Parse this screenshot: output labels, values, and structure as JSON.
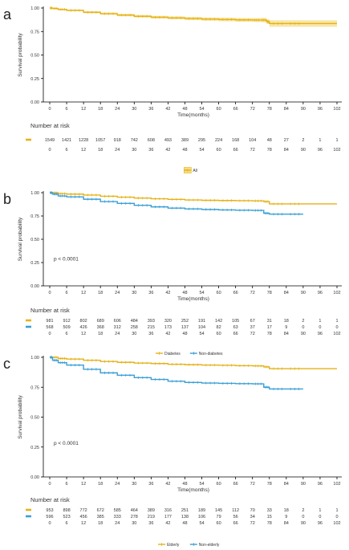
{
  "colors": {
    "yellow": "#e6b219",
    "blue": "#3a9fd6",
    "ci_fill": "#f4dd8a",
    "axis": "#000000",
    "text": "#333333"
  },
  "common": {
    "x_ticks": [
      0,
      6,
      12,
      18,
      24,
      30,
      36,
      42,
      48,
      54,
      60,
      66,
      72,
      78,
      84,
      90,
      96,
      102
    ],
    "y_ticks": [
      "0.00",
      "0.25",
      "0.50",
      "0.75",
      "1.00"
    ],
    "ylabel": "Survival probability",
    "xlabel": "Time(months)",
    "risk_title": "Number at risk"
  },
  "chart_data": [
    {
      "type": "line",
      "panel_letter": "a",
      "xlim": [
        0,
        102
      ],
      "ylim": [
        0,
        1
      ],
      "pvalue": "",
      "series": [
        {
          "name": "All",
          "color": "yellow",
          "ci": true,
          "x": [
            0,
            1,
            3,
            6,
            12,
            18,
            24,
            30,
            36,
            42,
            48,
            54,
            60,
            66,
            72,
            75,
            77,
            78,
            84,
            90,
            102
          ],
          "y": [
            1.0,
            0.995,
            0.985,
            0.975,
            0.955,
            0.94,
            0.925,
            0.912,
            0.902,
            0.895,
            0.888,
            0.882,
            0.878,
            0.874,
            0.872,
            0.872,
            0.855,
            0.835,
            0.835,
            0.835,
            0.835
          ],
          "ci_upper": [
            1.0,
            1.0,
            0.992,
            0.984,
            0.966,
            0.952,
            0.938,
            0.926,
            0.917,
            0.911,
            0.905,
            0.9,
            0.897,
            0.894,
            0.893,
            0.895,
            0.88,
            0.87,
            0.87,
            0.87,
            0.87
          ],
          "ci_lower": [
            1.0,
            0.99,
            0.978,
            0.966,
            0.944,
            0.928,
            0.912,
            0.898,
            0.887,
            0.879,
            0.871,
            0.864,
            0.859,
            0.854,
            0.851,
            0.849,
            0.83,
            0.8,
            0.8,
            0.8,
            0.8
          ]
        }
      ],
      "risk_table": [
        {
          "color": "yellow",
          "values": [
            "1549",
            "1421",
            "1228",
            "1057",
            "918",
            "742",
            "608",
            "493",
            "389",
            "295",
            "224",
            "168",
            "104",
            "48",
            "27",
            "2",
            "1",
            "1"
          ]
        }
      ],
      "legend": [
        "All"
      ]
    },
    {
      "type": "line",
      "panel_letter": "b",
      "xlim": [
        0,
        102
      ],
      "ylim": [
        0,
        1
      ],
      "pvalue": "p < 0.0001",
      "series": [
        {
          "name": "Diabetes",
          "color": "yellow",
          "ci": false,
          "x": [
            0,
            3,
            6,
            12,
            18,
            24,
            30,
            36,
            42,
            48,
            54,
            60,
            66,
            72,
            76,
            78,
            84,
            90,
            102
          ],
          "y": [
            1.0,
            0.99,
            0.985,
            0.975,
            0.962,
            0.952,
            0.942,
            0.935,
            0.928,
            0.922,
            0.918,
            0.916,
            0.914,
            0.912,
            0.905,
            0.88,
            0.88,
            0.88,
            0.88
          ]
        },
        {
          "name": "Non-diabetes",
          "color": "blue",
          "ci": false,
          "x": [
            0,
            1,
            3,
            6,
            12,
            18,
            24,
            30,
            36,
            42,
            48,
            54,
            60,
            66,
            72,
            76,
            78,
            84,
            90
          ],
          "y": [
            1.0,
            0.985,
            0.965,
            0.955,
            0.93,
            0.905,
            0.885,
            0.865,
            0.848,
            0.835,
            0.826,
            0.82,
            0.815,
            0.812,
            0.81,
            0.78,
            0.77,
            0.77,
            0.77
          ]
        }
      ],
      "risk_table": [
        {
          "color": "yellow",
          "values": [
            "981",
            "912",
            "802",
            "689",
            "606",
            "484",
            "393",
            "320",
            "252",
            "191",
            "142",
            "105",
            "67",
            "31",
            "18",
            "2",
            "1",
            "1"
          ]
        },
        {
          "color": "blue",
          "values": [
            "568",
            "509",
            "426",
            "368",
            "312",
            "258",
            "215",
            "173",
            "137",
            "104",
            "82",
            "63",
            "37",
            "17",
            "9",
            "0",
            "0",
            "0"
          ]
        }
      ],
      "legend": [
        "Diabetes",
        "Non-diabetes"
      ]
    },
    {
      "type": "line",
      "panel_letter": "c",
      "xlim": [
        0,
        102
      ],
      "ylim": [
        0,
        1
      ],
      "pvalue": "p < 0.0001",
      "series": [
        {
          "name": "Elderly",
          "color": "yellow",
          "ci": false,
          "x": [
            0,
            3,
            6,
            12,
            18,
            24,
            30,
            36,
            42,
            48,
            54,
            60,
            66,
            72,
            76,
            78,
            84,
            90,
            102
          ],
          "y": [
            1.0,
            0.99,
            0.985,
            0.975,
            0.965,
            0.958,
            0.952,
            0.948,
            0.942,
            0.938,
            0.935,
            0.933,
            0.93,
            0.928,
            0.92,
            0.905,
            0.905,
            0.905,
            0.905
          ]
        },
        {
          "name": "Non-elderly",
          "color": "blue",
          "ci": false,
          "x": [
            0,
            1,
            3,
            6,
            12,
            18,
            24,
            30,
            36,
            42,
            48,
            54,
            60,
            66,
            72,
            76,
            78,
            84,
            90
          ],
          "y": [
            1.0,
            0.975,
            0.955,
            0.935,
            0.9,
            0.87,
            0.85,
            0.83,
            0.815,
            0.8,
            0.79,
            0.785,
            0.782,
            0.78,
            0.778,
            0.75,
            0.735,
            0.735,
            0.735
          ]
        }
      ],
      "risk_table": [
        {
          "color": "yellow",
          "values": [
            "953",
            "898",
            "772",
            "672",
            "585",
            "464",
            "389",
            "316",
            "251",
            "189",
            "145",
            "112",
            "70",
            "33",
            "18",
            "2",
            "1",
            "1"
          ]
        },
        {
          "color": "blue",
          "values": [
            "596",
            "523",
            "456",
            "385",
            "333",
            "278",
            "219",
            "177",
            "138",
            "106",
            "79",
            "56",
            "34",
            "15",
            "9",
            "0",
            "0",
            "0"
          ]
        }
      ],
      "legend": [
        "Elderly",
        "Non-elderly"
      ]
    }
  ]
}
